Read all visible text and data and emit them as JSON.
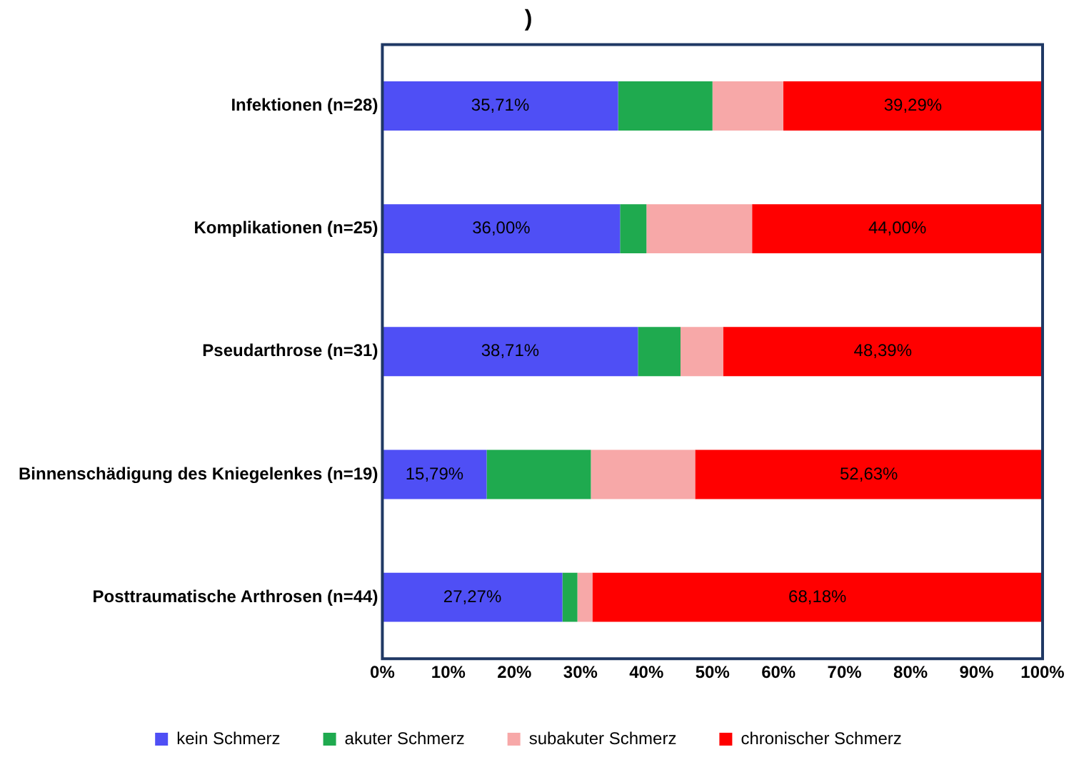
{
  "chart_data": {
    "type": "bar",
    "orientation": "horizontal",
    "stacked": true,
    "title": ")",
    "categories": [
      "Infektionen (n=28)",
      "Komplikationen (n=25)",
      "Pseudarthrose (n=31)",
      "Binnenschädigung des Kniegelenkes (n=19)",
      "Posttraumatische Arthrosen (n=44)"
    ],
    "series": [
      {
        "name": "kein Schmerz",
        "color": "#4f4ff5",
        "values": [
          35.71,
          36.0,
          38.71,
          15.79,
          27.27
        ],
        "value_labels": [
          "35,71%",
          "36,00%",
          "38,71%",
          "15,79%",
          "27,27%"
        ]
      },
      {
        "name": "akuter Schmerz",
        "color": "#1faa4f",
        "values": [
          14.29,
          4.0,
          6.45,
          15.79,
          2.27
        ]
      },
      {
        "name": "subakuter Schmerz",
        "color": "#f7a8a8",
        "values": [
          10.71,
          16.0,
          6.45,
          15.79,
          2.27
        ]
      },
      {
        "name": "chronischer Schmerz",
        "color": "#ff0000",
        "values": [
          39.29,
          44.0,
          48.39,
          52.63,
          68.18
        ],
        "value_labels": [
          "39,29%",
          "44,00%",
          "48,39%",
          "52,63%",
          "68,18%"
        ]
      }
    ],
    "xlim": [
      0,
      100
    ],
    "xticks": [
      {
        "value": 0,
        "label": "0%"
      },
      {
        "value": 10,
        "label": "10%"
      },
      {
        "value": 20,
        "label": "20%"
      },
      {
        "value": 30,
        "label": "30%"
      },
      {
        "value": 40,
        "label": "40%"
      },
      {
        "value": 50,
        "label": "50%"
      },
      {
        "value": 60,
        "label": "60%"
      },
      {
        "value": 70,
        "label": "70%"
      },
      {
        "value": 80,
        "label": "80%"
      },
      {
        "value": 90,
        "label": "90%"
      },
      {
        "value": 100,
        "label": "100%"
      }
    ],
    "grid": false,
    "legend": "bottom"
  }
}
